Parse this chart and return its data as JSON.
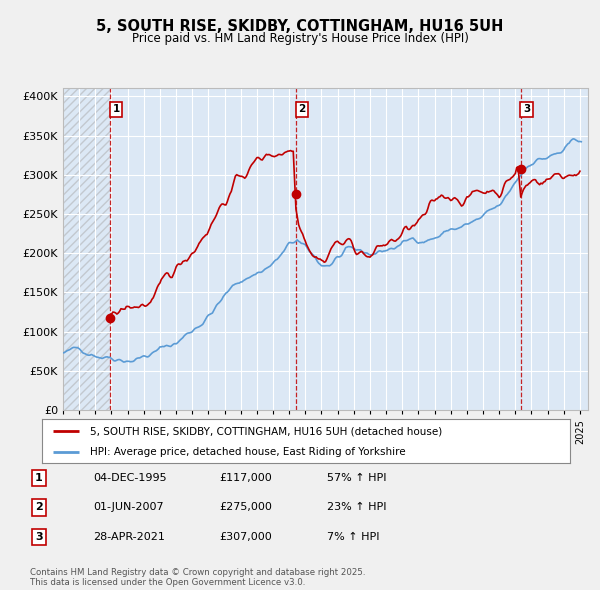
{
  "title_line1": "5, SOUTH RISE, SKIDBY, COTTINGHAM, HU16 5UH",
  "title_line2": "Price paid vs. HM Land Registry's House Price Index (HPI)",
  "background_color": "#f0f0f0",
  "plot_bg_color": "#dce8f5",
  "grid_color": "#ffffff",
  "hpi_color": "#5b9bd5",
  "price_color": "#c00000",
  "ylim": [
    0,
    410000
  ],
  "yticks": [
    0,
    50000,
    100000,
    150000,
    200000,
    250000,
    300000,
    350000,
    400000
  ],
  "xlim_start": 1993.0,
  "xlim_end": 2025.5,
  "sales": [
    {
      "date_num": 1995.92,
      "price": 117000,
      "label": "1"
    },
    {
      "date_num": 2007.42,
      "price": 275000,
      "label": "2"
    },
    {
      "date_num": 2021.33,
      "price": 307000,
      "label": "3"
    }
  ],
  "vlines": [
    1995.92,
    2007.42,
    2021.33
  ],
  "legend_entries": [
    "5, SOUTH RISE, SKIDBY, COTTINGHAM, HU16 5UH (detached house)",
    "HPI: Average price, detached house, East Riding of Yorkshire"
  ],
  "table_rows": [
    {
      "num": "1",
      "date": "04-DEC-1995",
      "price": "£117,000",
      "pct": "57% ↑ HPI"
    },
    {
      "num": "2",
      "date": "01-JUN-2007",
      "price": "£275,000",
      "pct": "23% ↑ HPI"
    },
    {
      "num": "3",
      "date": "28-APR-2021",
      "price": "£307,000",
      "pct": "7% ↑ HPI"
    }
  ],
  "footer": "Contains HM Land Registry data © Crown copyright and database right 2025.\nThis data is licensed under the Open Government Licence v3.0."
}
